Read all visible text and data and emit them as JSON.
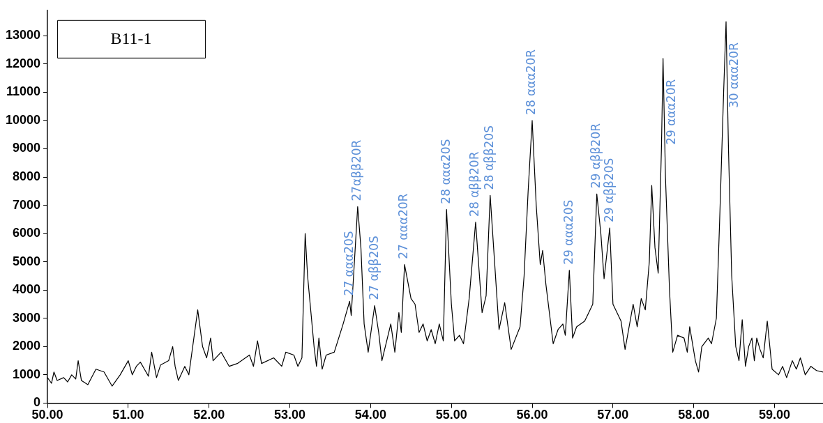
{
  "chart_data": {
    "type": "line",
    "color": "#000000",
    "marker": "none",
    "grid": false,
    "xlim": [
      50,
      59.6
    ],
    "ylim": [
      0,
      13900
    ],
    "xticks": [
      {
        "value": 50,
        "label": "50.00"
      },
      {
        "value": 51,
        "label": "51.00"
      },
      {
        "value": 52,
        "label": "52.00"
      },
      {
        "value": 53,
        "label": "53.00"
      },
      {
        "value": 54,
        "label": "54.00"
      },
      {
        "value": 55,
        "label": "55.00"
      },
      {
        "value": 56,
        "label": "56.00"
      },
      {
        "value": 57,
        "label": "57.00"
      },
      {
        "value": 58,
        "label": "58.00"
      },
      {
        "value": 59,
        "label": "59.00"
      }
    ],
    "yticks": [
      0,
      1000,
      2000,
      3000,
      4000,
      5000,
      6000,
      7000,
      8000,
      9000,
      10000,
      11000,
      12000,
      13000
    ],
    "x": [
      50.0,
      50.05,
      50.08,
      50.12,
      50.2,
      50.25,
      50.3,
      50.35,
      50.38,
      50.42,
      50.5,
      50.6,
      50.7,
      50.8,
      50.9,
      51.0,
      51.05,
      51.1,
      51.15,
      51.2,
      51.25,
      51.29,
      51.35,
      51.4,
      51.5,
      51.55,
      51.58,
      51.62,
      51.7,
      51.75,
      51.86,
      51.92,
      51.97,
      52.02,
      52.05,
      52.15,
      52.25,
      52.35,
      52.5,
      52.55,
      52.6,
      52.65,
      52.8,
      52.9,
      52.95,
      53.05,
      53.1,
      53.15,
      53.19,
      53.22,
      53.3,
      53.33,
      53.36,
      53.4,
      53.45,
      53.55,
      53.66,
      53.74,
      53.76,
      53.84,
      53.88,
      53.92,
      53.97,
      54.05,
      54.1,
      54.14,
      54.25,
      54.3,
      54.35,
      54.38,
      54.42,
      54.5,
      54.55,
      54.6,
      54.65,
      54.7,
      54.75,
      54.8,
      54.85,
      54.9,
      54.94,
      55.0,
      55.04,
      55.1,
      55.15,
      55.22,
      55.3,
      55.38,
      55.43,
      55.48,
      55.59,
      55.66,
      55.74,
      55.85,
      55.9,
      55.95,
      56.0,
      56.05,
      56.1,
      56.13,
      56.17,
      56.26,
      56.32,
      56.38,
      56.41,
      56.46,
      56.5,
      56.55,
      56.65,
      56.7,
      56.75,
      56.8,
      56.85,
      56.89,
      56.96,
      57.0,
      57.1,
      57.15,
      57.25,
      57.3,
      57.35,
      57.4,
      57.45,
      57.48,
      57.52,
      57.56,
      57.6,
      57.62,
      57.65,
      57.7,
      57.74,
      57.8,
      57.88,
      57.92,
      57.95,
      58.02,
      58.06,
      58.1,
      58.18,
      58.22,
      58.28,
      58.32,
      58.37,
      58.4,
      58.43,
      58.47,
      58.52,
      58.56,
      58.6,
      58.64,
      58.68,
      58.72,
      58.75,
      58.78,
      58.82,
      58.86,
      58.91,
      58.97,
      59.05,
      59.1,
      59.15,
      59.22,
      59.27,
      59.32,
      59.38,
      59.45,
      59.52,
      59.6
    ],
    "values": [
      900,
      700,
      1100,
      800,
      900,
      750,
      1000,
      850,
      1500,
      800,
      650,
      1200,
      1100,
      600,
      1000,
      1500,
      1000,
      1300,
      1450,
      1200,
      950,
      1800,
      900,
      1350,
      1500,
      2000,
      1300,
      800,
      1300,
      1000,
      3300,
      2000,
      1600,
      2300,
      1500,
      1800,
      1300,
      1400,
      1700,
      1300,
      2200,
      1400,
      1600,
      1300,
      1800,
      1700,
      1300,
      1600,
      6000,
      4500,
      2000,
      1300,
      2300,
      1200,
      1700,
      1800,
      2800,
      3600,
      3100,
      6950,
      5500,
      2800,
      1800,
      3450,
      2500,
      1500,
      2800,
      1800,
      3200,
      2500,
      4900,
      3700,
      3500,
      2500,
      2800,
      2200,
      2600,
      2100,
      2800,
      2200,
      6850,
      3500,
      2200,
      2400,
      2100,
      3700,
      6400,
      3200,
      3800,
      7350,
      2600,
      3550,
      1900,
      2700,
      4500,
      7500,
      10000,
      7000,
      4900,
      5400,
      4200,
      2100,
      2600,
      2800,
      2400,
      4700,
      2300,
      2700,
      2900,
      3200,
      3500,
      7400,
      6000,
      4400,
      6200,
      3500,
      2900,
      1900,
      3500,
      2700,
      3700,
      3300,
      5000,
      7700,
      5500,
      4600,
      9000,
      12200,
      8000,
      4000,
      1800,
      2400,
      2300,
      1800,
      2700,
      1500,
      1100,
      2000,
      2300,
      2100,
      3000,
      6400,
      11000,
      13500,
      9000,
      4500,
      2000,
      1500,
      2950,
      1300,
      2000,
      2300,
      1500,
      2300,
      1900,
      1600,
      2900,
      1200,
      1000,
      1300,
      900,
      1500,
      1200,
      1600,
      1000,
      1300,
      1150,
      1100
    ],
    "annotations": [
      "B11-1",
      {
        "text": "27 ααα20S",
        "x": 53.74,
        "y": 3600
      },
      {
        "text": "27αββ20R",
        "x": 53.84,
        "y": 6950
      },
      {
        "text": "27 αββ20S",
        "x": 54.05,
        "y": 3450
      },
      {
        "text": "27 ααα20R",
        "x": 54.42,
        "y": 4900
      },
      {
        "text": "28 ααα20S",
        "x": 54.94,
        "y": 6850
      },
      {
        "text": "28 αββ20R",
        "x": 55.3,
        "y": 6400
      },
      {
        "text": "28 αββ20S",
        "x": 55.48,
        "y": 7350
      },
      {
        "text": "28 ααα20R",
        "x": 56.0,
        "y": 10000
      },
      {
        "text": "29 ααα20S",
        "x": 56.46,
        "y": 4700
      },
      {
        "text": "29 αββ20R",
        "x": 56.8,
        "y": 7400
      },
      {
        "text": "29 αββ20S",
        "x": 56.96,
        "y": 6200
      },
      {
        "text": "29 ααα20R",
        "x": 57.62,
        "y": 12200
      },
      {
        "text": "30 ααα20R",
        "x": 58.4,
        "y": 13500
      }
    ]
  }
}
